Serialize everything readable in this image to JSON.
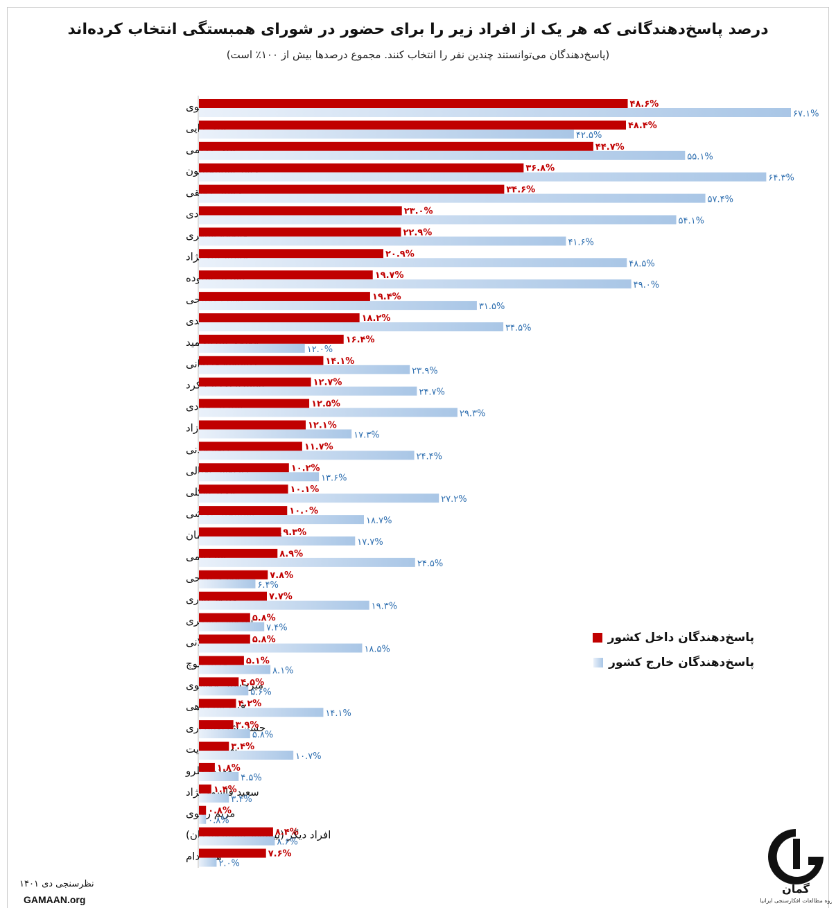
{
  "header": {
    "title": "درصد پاسخ‌دهندگانی که هر یک از افراد زیر را برای حضور در شورای همبستگی انتخاب کرده‌اند",
    "subtitle": "(پاسخ‌دهندگان می‌توانستند چندین نفر را انتخاب کنند. مجموع درصدها بیش از ۱۰۰٪ است)"
  },
  "legend": {
    "inside": "پاسخ‌دهندگان داخل کشور",
    "outside": "پاسخ‌دهندگان خارج کشور"
  },
  "footer": {
    "survey": "نظرسنجی دی ۱۴۰۱",
    "site": "GAMAAN.org",
    "logo_text": "گمان",
    "logo_caption": "گروه مطالعات افکارسنجی ایرانیان"
  },
  "colors": {
    "inside": "#c00000",
    "outside_light": "#eaf1fa",
    "outside_dark": "#a9c6e6",
    "outside_text": "#2f6fb0"
  },
  "chart_data": {
    "type": "bar",
    "orientation": "horizontal",
    "xlim": [
      0,
      70
    ],
    "grid": false,
    "legend_position": "right",
    "categories": [
      "رضا پهلوی",
      "علی دایی",
      "علی کریمی",
      "حامد اسماعیلیون",
      "حسین رونقی",
      "نازنین بنیادی",
      "فاطمه سپهری",
      "مسیح علی‌نژاد",
      "نسرین ستوده",
      "توماج صالحی",
      "نرگس محمدی",
      "مولوی عبدالحمید",
      "گلشیفته فراهانی",
      "نماینده احزاب کرد",
      "شیرین عبادی",
      "محمد نوری‌زاد",
      "کاوه مدنی",
      "داریوش اقبالی",
      "مجید توکلی",
      "اسماعیل بخشی",
      "نماینده شورای معلمان",
      "آتنا دایمی",
      "مهدی یراحی",
      "فیروز نادری",
      "سروش لشکری",
      "عباس میلانی",
      "فریبا بلوچ",
      "میرحسین موسوی",
      "فرج سرکوهی",
      "حسن شریعتمداری",
      "بهاره هدایت",
      "مهدیه گلرو",
      "سعید قاسمی‌نژاد",
      "مریم رجوی",
      "افراد دیگر (پیشنهاد پاسخ‌دهندگان)",
      "هیچکدام"
    ],
    "series": [
      {
        "name": "پاسخ‌دهندگان داخل کشور",
        "values": [
          48.6,
          48.4,
          44.7,
          36.8,
          34.6,
          23.0,
          22.9,
          20.9,
          19.7,
          19.4,
          18.2,
          16.4,
          14.1,
          12.7,
          12.5,
          12.1,
          11.7,
          10.2,
          10.1,
          10.0,
          9.3,
          8.9,
          7.8,
          7.7,
          5.8,
          5.8,
          5.1,
          4.5,
          4.2,
          3.9,
          3.4,
          1.8,
          1.4,
          0.8,
          8.4,
          7.6
        ],
        "labels": [
          "۴۸.۶%",
          "۴۸.۴%",
          "۴۴.۷%",
          "۳۶.۸%",
          "۳۴.۶%",
          "۲۳.۰%",
          "۲۲.۹%",
          "۲۰.۹%",
          "۱۹.۷%",
          "۱۹.۴%",
          "۱۸.۲%",
          "۱۶.۴%",
          "۱۴.۱%",
          "۱۲.۷%",
          "۱۲.۵%",
          "۱۲.۱%",
          "۱۱.۷%",
          "۱۰.۲%",
          "۱۰.۱%",
          "۱۰.۰%",
          "۹.۳%",
          "۸.۹%",
          "۷.۸%",
          "۷.۷%",
          "۵.۸%",
          "۵.۸%",
          "۵.۱%",
          "۴.۵%",
          "۴.۲%",
          "۳.۹%",
          "۳.۴%",
          "۱.۸%",
          "۱.۴%",
          "۰.۸%",
          "۸.۴%",
          "۷.۶%"
        ]
      },
      {
        "name": "پاسخ‌دهندگان خارج کشور",
        "values": [
          67.1,
          42.5,
          55.1,
          64.3,
          57.4,
          54.1,
          41.6,
          48.5,
          49.0,
          31.5,
          34.5,
          12.0,
          23.9,
          24.7,
          29.3,
          17.3,
          24.4,
          13.6,
          27.2,
          18.7,
          17.7,
          24.5,
          6.4,
          19.3,
          7.4,
          18.5,
          8.1,
          5.6,
          14.1,
          5.8,
          10.7,
          4.5,
          3.4,
          0.8,
          8.6,
          2.0
        ],
        "labels": [
          "۶۷.۱%",
          "۴۲.۵%",
          "۵۵.۱%",
          "۶۴.۳%",
          "۵۷.۴%",
          "۵۴.۱%",
          "۴۱.۶%",
          "۴۸.۵%",
          "۴۹.۰%",
          "۳۱.۵%",
          "۳۴.۵%",
          "۱۲.۰%",
          "۲۳.۹%",
          "۲۴.۷%",
          "۲۹.۳%",
          "۱۷.۳%",
          "۲۴.۴%",
          "۱۳.۶%",
          "۲۷.۲%",
          "۱۸.۷%",
          "۱۷.۷%",
          "۲۴.۵%",
          "۶.۴%",
          "۱۹.۳%",
          "۷.۴%",
          "۱۸.۵%",
          "۸.۱%",
          "۵.۶%",
          "۱۴.۱%",
          "۵.۸%",
          "۱۰.۷%",
          "۴.۵%",
          "۳.۴%",
          "۰.۸%",
          "۸.۶%",
          "۲.۰%"
        ]
      }
    ]
  }
}
